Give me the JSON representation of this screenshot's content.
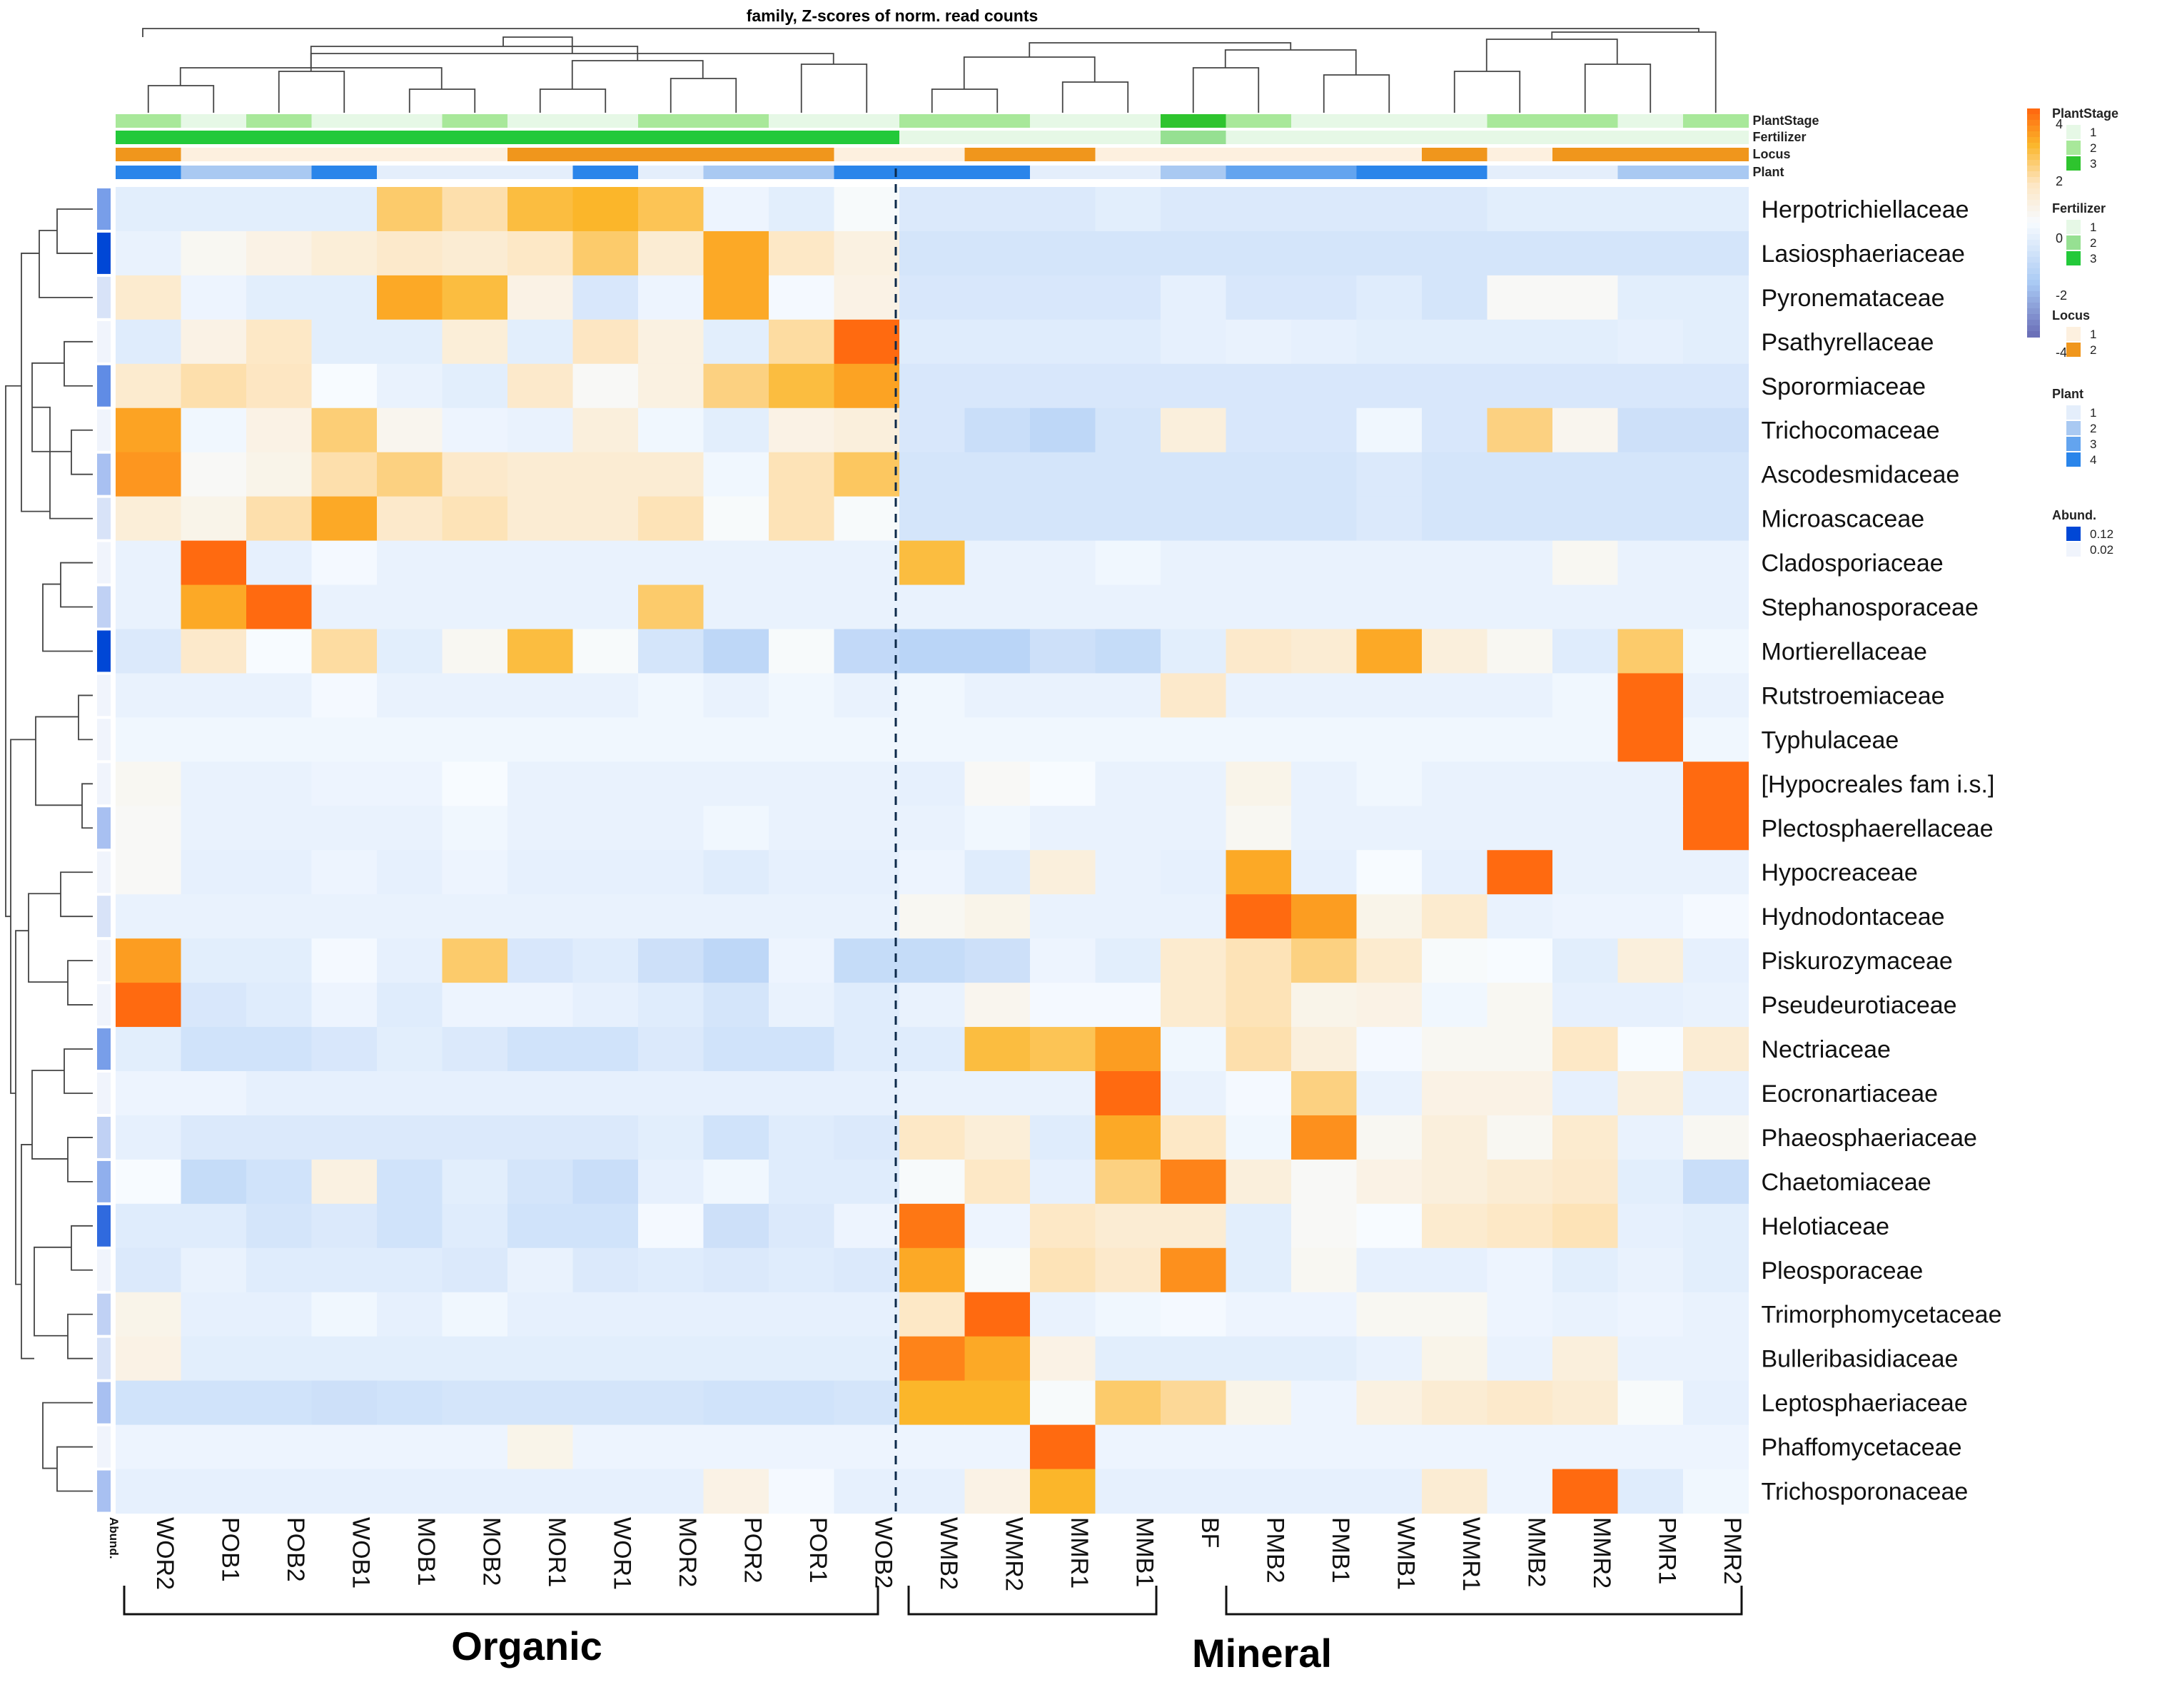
{
  "chart_data": {
    "type": "heatmap",
    "title": "family, Z-scores of norm. read counts",
    "columns": [
      "WOR2",
      "POB1",
      "POB2",
      "WOB1",
      "MOB1",
      "MOB2",
      "MOR1",
      "WOR1",
      "MOR2",
      "POR2",
      "POR1",
      "WOB2",
      "WMB2",
      "WMR2",
      "MMR1",
      "MMB1",
      "BF",
      "PMB2",
      "PMB1",
      "WMB1",
      "WMR1",
      "MMB2",
      "MMR2",
      "PMR1",
      "PMR2"
    ],
    "rows": [
      "Herpotrichiellaceae",
      "Lasiosphaeriaceae",
      "Pyronemataceae",
      "Psathyrellaceae",
      "Sporormiaceae",
      "Trichocomaceae",
      "Ascodesmidaceae",
      "Microascaceae",
      "Cladosporiaceae",
      "Stephanosporaceae",
      "Mortierellaceae",
      "Rutstroemiaceae",
      "Typhulaceae",
      "[Hypocreales fam  i.s.]",
      "Plectosphaerellaceae",
      "Hypocreaceae",
      "Hydnodontaceae",
      "Piskurozymaceae",
      "Pseudeurotiaceae",
      "Nectriaceae",
      "Eocronartiaceae",
      "Phaeosphaeriaceae",
      "Chaetomiaceae",
      "Helotiaceae",
      "Pleosporaceae",
      "Trimorphomycetaceae",
      "Bulleribasidiaceae",
      "Leptosphaeriaceae",
      "Phaffomycetaceae",
      "Trichosporonaceae"
    ],
    "z": [
      [
        -0.6,
        -0.6,
        -0.6,
        -0.6,
        2.2,
        1.6,
        2.6,
        2.8,
        2.4,
        -0.3,
        -0.6,
        0.1,
        -0.8,
        -0.8,
        -0.8,
        -0.6,
        -0.8,
        -0.8,
        -0.8,
        -0.8,
        -0.8,
        -0.6,
        -0.6,
        -0.6,
        -0.6
      ],
      [
        -0.4,
        0.3,
        0.6,
        0.9,
        1.2,
        1.0,
        1.3,
        2.2,
        1.0,
        3.0,
        1.3,
        0.7,
        -1.0,
        -1.0,
        -1.0,
        -1.0,
        -1.0,
        -1.0,
        -1.0,
        -1.0,
        -1.0,
        -1.0,
        -1.0,
        -1.0,
        -1.0
      ],
      [
        1.1,
        -0.3,
        -0.6,
        -0.6,
        3.0,
        2.6,
        0.6,
        -0.9,
        -0.3,
        3.0,
        -0.1,
        0.6,
        -0.9,
        -0.9,
        -0.9,
        -0.9,
        -0.5,
        -0.9,
        -0.9,
        -0.7,
        -1.0,
        0.2,
        0.2,
        -0.6,
        -0.6
      ],
      [
        -0.7,
        0.6,
        1.3,
        -0.6,
        -0.6,
        0.9,
        -0.6,
        1.4,
        0.7,
        -0.6,
        1.7,
        4.0,
        -0.7,
        -0.7,
        -0.7,
        -0.7,
        -0.5,
        -0.4,
        -0.5,
        -0.6,
        -0.6,
        -0.6,
        -0.6,
        -0.5,
        -0.6
      ],
      [
        1.1,
        1.6,
        1.4,
        0.0,
        -0.4,
        -0.6,
        1.2,
        0.2,
        0.7,
        2.0,
        2.6,
        3.1,
        -0.9,
        -0.9,
        -0.9,
        -0.9,
        -0.9,
        -0.9,
        -0.9,
        -0.9,
        -0.9,
        -0.9,
        -0.9,
        -0.9,
        -0.9
      ],
      [
        3.1,
        -0.2,
        0.6,
        2.1,
        0.4,
        -0.3,
        -0.4,
        0.8,
        -0.2,
        -0.6,
        0.6,
        0.8,
        -0.9,
        -1.3,
        -1.6,
        -1.0,
        0.8,
        -0.9,
        -0.9,
        -0.2,
        -0.9,
        2.0,
        0.4,
        -1.2,
        -1.2
      ],
      [
        3.3,
        0.2,
        0.5,
        1.6,
        2.0,
        1.2,
        1.0,
        1.0,
        1.0,
        -0.2,
        1.5,
        2.3,
        -1.0,
        -1.0,
        -1.0,
        -1.0,
        -1.0,
        -1.0,
        -1.0,
        -0.8,
        -1.0,
        -1.0,
        -1.0,
        -1.0,
        -1.0
      ],
      [
        0.9,
        0.5,
        1.6,
        3.0,
        1.2,
        1.5,
        1.0,
        1.0,
        1.5,
        0.1,
        1.5,
        0.1,
        -1.0,
        -1.0,
        -1.0,
        -1.0,
        -1.0,
        -1.0,
        -1.0,
        -0.8,
        -1.0,
        -1.0,
        -1.0,
        -1.0,
        -1.0
      ],
      [
        -0.4,
        4.0,
        -0.5,
        -0.1,
        -0.4,
        -0.4,
        -0.4,
        -0.4,
        -0.4,
        -0.4,
        -0.4,
        -0.4,
        2.6,
        -0.4,
        -0.4,
        -0.2,
        -0.4,
        -0.4,
        -0.4,
        -0.4,
        -0.4,
        -0.4,
        0.3,
        -0.4,
        -0.4
      ],
      [
        -0.4,
        3.0,
        4.0,
        -0.4,
        -0.4,
        -0.4,
        -0.4,
        -0.4,
        2.2,
        -0.4,
        -0.4,
        -0.4,
        -0.4,
        -0.4,
        -0.4,
        -0.4,
        -0.4,
        -0.4,
        -0.4,
        -0.4,
        -0.4,
        -0.4,
        -0.4,
        -0.4,
        -0.4
      ],
      [
        -0.8,
        1.2,
        0.0,
        1.7,
        -0.6,
        0.3,
        2.6,
        0.1,
        -1.0,
        -1.6,
        0.1,
        -1.5,
        -1.7,
        -1.7,
        -1.2,
        -1.4,
        -0.6,
        1.2,
        1.0,
        3.0,
        0.8,
        0.3,
        -0.7,
        2.2,
        -0.2
      ],
      [
        -0.4,
        -0.4,
        -0.4,
        -0.1,
        -0.4,
        -0.4,
        -0.4,
        -0.4,
        -0.2,
        -0.4,
        -0.2,
        -0.4,
        -0.2,
        -0.4,
        -0.4,
        -0.4,
        1.2,
        -0.4,
        -0.4,
        -0.4,
        -0.4,
        -0.4,
        -0.2,
        4.2,
        -0.4
      ],
      [
        -0.2,
        -0.2,
        -0.2,
        -0.2,
        -0.2,
        -0.2,
        -0.2,
        -0.2,
        -0.2,
        -0.2,
        -0.2,
        -0.2,
        -0.2,
        -0.2,
        -0.2,
        -0.2,
        -0.2,
        -0.2,
        -0.2,
        -0.2,
        -0.2,
        -0.2,
        -0.2,
        4.2,
        -0.2
      ],
      [
        0.3,
        -0.4,
        -0.4,
        -0.3,
        -0.3,
        0.0,
        -0.4,
        -0.4,
        -0.4,
        -0.4,
        -0.4,
        -0.4,
        -0.5,
        0.2,
        0.0,
        -0.4,
        -0.4,
        0.5,
        -0.4,
        -0.2,
        -0.4,
        -0.4,
        -0.4,
        -0.4,
        4.2
      ],
      [
        0.2,
        -0.4,
        -0.4,
        -0.4,
        -0.4,
        -0.2,
        -0.4,
        -0.4,
        -0.4,
        -0.2,
        -0.4,
        -0.4,
        -0.4,
        -0.2,
        -0.4,
        -0.4,
        -0.4,
        0.3,
        -0.4,
        -0.4,
        -0.4,
        -0.4,
        -0.4,
        -0.4,
        4.2
      ],
      [
        0.2,
        -0.5,
        -0.5,
        -0.3,
        -0.5,
        -0.3,
        -0.5,
        -0.5,
        -0.5,
        -0.7,
        -0.5,
        -0.5,
        -0.3,
        -0.7,
        0.8,
        -0.4,
        -0.5,
        3.0,
        -0.5,
        0.0,
        -0.5,
        4.0,
        -0.4,
        -0.4,
        -0.4
      ],
      [
        -0.4,
        -0.4,
        -0.4,
        -0.4,
        -0.4,
        -0.4,
        -0.4,
        -0.4,
        -0.4,
        -0.4,
        -0.4,
        -0.4,
        0.3,
        0.5,
        -0.4,
        -0.4,
        -0.4,
        4.0,
        3.2,
        0.5,
        1.1,
        -0.4,
        -0.3,
        -0.3,
        -0.1
      ],
      [
        3.2,
        -0.6,
        -0.6,
        -0.1,
        -0.5,
        2.2,
        -0.9,
        -0.7,
        -1.2,
        -1.6,
        -0.3,
        -1.4,
        -1.4,
        -1.2,
        -0.3,
        -0.6,
        1.1,
        1.5,
        2.0,
        1.1,
        0.1,
        0.0,
        -0.6,
        0.8,
        -0.5
      ],
      [
        4.0,
        -0.9,
        -0.7,
        -0.3,
        -0.7,
        -0.3,
        -0.3,
        -0.5,
        -0.7,
        -1.0,
        -0.4,
        -0.7,
        -0.4,
        0.4,
        -0.1,
        -0.1,
        1.1,
        1.5,
        0.5,
        0.6,
        -0.2,
        0.3,
        -0.5,
        -0.5,
        -0.4
      ],
      [
        -0.6,
        -1.1,
        -1.1,
        -0.9,
        -0.6,
        -0.8,
        -1.1,
        -1.1,
        -0.8,
        -1.1,
        -1.1,
        -0.7,
        -0.7,
        2.6,
        2.4,
        3.2,
        -0.2,
        1.6,
        0.8,
        -0.1,
        0.3,
        0.3,
        1.3,
        0.0,
        1.0
      ],
      [
        -0.3,
        -0.3,
        -0.5,
        -0.5,
        -0.5,
        -0.5,
        -0.5,
        -0.5,
        -0.5,
        -0.5,
        -0.5,
        -0.5,
        -0.4,
        -0.4,
        -0.4,
        4.0,
        -0.4,
        -0.1,
        2.0,
        -0.4,
        0.6,
        0.6,
        -0.5,
        0.8,
        -0.5
      ],
      [
        -0.5,
        -0.8,
        -0.8,
        -0.8,
        -0.8,
        -0.8,
        -0.8,
        -0.8,
        -0.6,
        -1.1,
        -0.7,
        -0.8,
        1.3,
        0.9,
        -0.7,
        3.0,
        1.3,
        -0.2,
        3.4,
        0.3,
        0.8,
        0.3,
        1.1,
        -0.4,
        0.3
      ],
      [
        0.0,
        -1.4,
        -1.1,
        0.7,
        -1.1,
        -0.6,
        -1.0,
        -1.3,
        -0.5,
        -0.2,
        -0.7,
        -0.7,
        0.1,
        1.3,
        -0.5,
        2.0,
        3.6,
        0.8,
        0.2,
        0.6,
        0.8,
        1.0,
        1.2,
        -0.6,
        -1.3
      ],
      [
        -0.7,
        -0.7,
        -1.0,
        -0.8,
        -1.1,
        -0.7,
        -1.1,
        -1.1,
        -0.1,
        -1.2,
        -0.8,
        -0.3,
        3.8,
        -0.3,
        1.3,
        1.0,
        1.0,
        -0.6,
        0.2,
        0.0,
        1.1,
        1.3,
        1.5,
        -0.5,
        -0.6
      ],
      [
        -0.8,
        -0.4,
        -0.7,
        -0.7,
        -0.7,
        -0.8,
        -0.4,
        -0.8,
        -0.7,
        -0.8,
        -0.7,
        -0.8,
        3.0,
        0.1,
        1.5,
        1.2,
        3.4,
        -0.6,
        0.3,
        -0.5,
        -0.5,
        -0.3,
        -0.6,
        -0.4,
        -0.6
      ],
      [
        0.5,
        -0.5,
        -0.5,
        -0.2,
        -0.5,
        -0.2,
        -0.5,
        -0.5,
        -0.5,
        -0.5,
        -0.5,
        -0.5,
        1.3,
        4.0,
        -0.4,
        -0.2,
        -0.1,
        -0.3,
        -0.3,
        0.3,
        0.3,
        -0.3,
        -0.4,
        -0.3,
        -0.4
      ],
      [
        0.6,
        -0.6,
        -0.6,
        -0.6,
        -0.6,
        -0.6,
        -0.6,
        -0.6,
        -0.6,
        -0.6,
        -0.6,
        -0.6,
        3.6,
        3.0,
        0.6,
        -0.6,
        -0.6,
        -0.6,
        -0.6,
        -0.4,
        0.5,
        -0.4,
        0.8,
        -0.4,
        -0.4
      ],
      [
        -1.1,
        -1.1,
        -1.1,
        -1.2,
        -1.1,
        -1.0,
        -1.0,
        -1.0,
        -1.0,
        -1.1,
        -1.1,
        -1.0,
        2.8,
        2.8,
        0.1,
        2.2,
        1.8,
        0.5,
        -0.3,
        0.7,
        1.0,
        1.2,
        1.0,
        0.1,
        -0.5
      ],
      [
        -0.3,
        -0.3,
        -0.3,
        -0.3,
        -0.3,
        -0.3,
        0.5,
        -0.3,
        -0.3,
        -0.3,
        -0.3,
        -0.3,
        -0.3,
        -0.3,
        4.0,
        -0.3,
        -0.3,
        -0.3,
        -0.3,
        -0.3,
        -0.3,
        -0.3,
        -0.3,
        -0.3,
        -0.3
      ],
      [
        -0.5,
        -0.5,
        -0.5,
        -0.5,
        -0.5,
        -0.5,
        -0.5,
        -0.5,
        -0.5,
        0.6,
        -0.1,
        -0.5,
        -0.5,
        0.6,
        2.8,
        -0.5,
        -0.5,
        -0.5,
        -0.5,
        -0.5,
        1.0,
        -0.3,
        4.0,
        -0.7,
        -0.2
      ]
    ],
    "annotations": {
      "PlantStage": [
        2,
        1,
        2,
        1,
        1,
        2,
        1,
        1,
        2,
        2,
        1,
        1,
        2,
        2,
        1,
        1,
        3,
        2,
        1,
        1,
        1,
        2,
        2,
        1,
        2
      ],
      "Fertilizer": [
        3,
        3,
        3,
        3,
        3,
        3,
        3,
        3,
        3,
        3,
        3,
        3,
        1,
        1,
        1,
        1,
        2,
        1,
        1,
        1,
        1,
        1,
        1,
        1,
        1
      ],
      "Locus": [
        2,
        1,
        1,
        1,
        1,
        1,
        2,
        2,
        2,
        2,
        2,
        1,
        1,
        2,
        2,
        1,
        1,
        1,
        1,
        1,
        2,
        1,
        2,
        2,
        2
      ],
      "Plant": [
        4,
        2,
        2,
        4,
        1,
        1,
        1,
        4,
        1,
        2,
        2,
        4,
        4,
        4,
        1,
        1,
        2,
        3,
        3,
        4,
        4,
        1,
        1,
        2,
        2
      ]
    },
    "row_abundance": [
      0.07,
      0.12,
      0.03,
      0.02,
      0.08,
      0.02,
      0.05,
      0.03,
      0.02,
      0.04,
      0.12,
      0.02,
      0.02,
      0.02,
      0.05,
      0.02,
      0.03,
      0.02,
      0.02,
      0.07,
      0.02,
      0.04,
      0.06,
      0.1,
      0.02,
      0.04,
      0.03,
      0.05,
      0.02,
      0.05
    ],
    "groups": [
      {
        "label": "Organic",
        "from": 0,
        "to": 11
      },
      {
        "label": "Mineral",
        "from": 12,
        "to": 24
      }
    ],
    "color_scale": {
      "min": -4,
      "max": 4,
      "ticks": [
        "4",
        "2",
        "0",
        "-2",
        "-4"
      ],
      "low": "#6b70b8",
      "mid": "#f7fbff",
      "high": "#ff6a10"
    },
    "annotation_colors": {
      "PlantStage": [
        "#e6f8e6",
        "#a8e89a",
        "#2ec42e"
      ],
      "Fertilizer": [
        "#e6f8e6",
        "#96e092",
        "#23c93a"
      ],
      "Locus": [
        "#fdf0df",
        "#f0961c"
      ],
      "Plant": [
        "#e4eefb",
        "#a9c9f2",
        "#63a4ef",
        "#2a85ea"
      ],
      "Abund": [
        "#f0f4fc",
        "#0047d6"
      ]
    },
    "legends": [
      {
        "title": "PlantStage",
        "levels": [
          "1",
          "2",
          "3"
        ]
      },
      {
        "title": "Fertilizer",
        "levels": [
          "1",
          "2",
          "3"
        ]
      },
      {
        "title": "Locus",
        "levels": [
          "1",
          "2"
        ]
      },
      {
        "title": "Plant",
        "levels": [
          "1",
          "2",
          "3",
          "4"
        ]
      },
      {
        "title": "Abund.",
        "levels": [
          "0.12",
          "0.02"
        ]
      }
    ],
    "abund_label": "Abund."
  }
}
